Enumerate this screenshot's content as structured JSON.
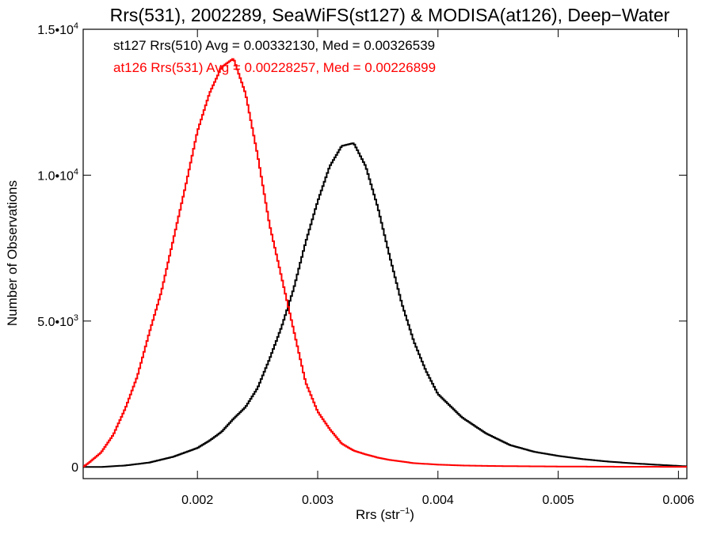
{
  "chart_data": {
    "type": "histogram",
    "title": "Rrs(531), 2002289, SeaWiFS(st127) & MODISA(at126), Deep−Water",
    "xlabel": "Rrs (str",
    "xlabel_sup": "−1",
    "xlabel_close": ")",
    "ylabel": "Number of Observations",
    "xlim": [
      0.00105,
      0.00607
    ],
    "ylim": [
      -400,
      15000
    ],
    "x_ticks": [
      {
        "value": 0.002,
        "label": "0.002"
      },
      {
        "value": 0.003,
        "label": "0.003"
      },
      {
        "value": 0.004,
        "label": "0.004"
      },
      {
        "value": 0.005,
        "label": "0.005"
      },
      {
        "value": 0.006,
        "label": "0.006"
      }
    ],
    "y_ticks": [
      {
        "value": 0,
        "base": "0",
        "exp": ""
      },
      {
        "value": 5000,
        "base": "5.0•10",
        "exp": "3"
      },
      {
        "value": 10000,
        "base": "1.0•10",
        "exp": "4"
      },
      {
        "value": 15000,
        "base": "1.5•10",
        "exp": "4"
      }
    ],
    "legend": [
      {
        "text": "st127 Rrs(510) Avg = 0.00332130, Med = 0.00326539",
        "color": "#000000"
      },
      {
        "text": "at126 Rrs(531) Avg = 0.00228257, Med = 0.00226899",
        "color": "#ff0000"
      }
    ],
    "series": [
      {
        "color": "#000000",
        "x": [
          0.00105,
          0.0012,
          0.0014,
          0.0016,
          0.0018,
          0.002,
          0.0021,
          0.0022,
          0.0023,
          0.0024,
          0.0025,
          0.0026,
          0.0027,
          0.0028,
          0.0029,
          0.003,
          0.0031,
          0.0032,
          0.0033,
          0.0034,
          0.0035,
          0.0036,
          0.0037,
          0.0038,
          0.0039,
          0.004,
          0.0042,
          0.0044,
          0.0046,
          0.0048,
          0.005,
          0.0052,
          0.0054,
          0.0056,
          0.0058,
          0.00607
        ],
        "values": [
          0,
          0,
          50,
          150,
          350,
          650,
          900,
          1200,
          1650,
          2050,
          2700,
          3700,
          4800,
          6100,
          7700,
          9100,
          10300,
          11000,
          11100,
          10300,
          8900,
          7200,
          5600,
          4300,
          3300,
          2500,
          1700,
          1150,
          750,
          520,
          380,
          270,
          190,
          130,
          80,
          20
        ]
      },
      {
        "color": "#ff0000",
        "x": [
          0.00105,
          0.0011,
          0.0012,
          0.0013,
          0.0014,
          0.0015,
          0.0016,
          0.0017,
          0.0018,
          0.0019,
          0.002,
          0.0021,
          0.0022,
          0.0023,
          0.0024,
          0.0025,
          0.0026,
          0.0027,
          0.0028,
          0.0029,
          0.003,
          0.0031,
          0.0032,
          0.0033,
          0.0034,
          0.0035,
          0.0036,
          0.0038,
          0.004,
          0.0042,
          0.0045,
          0.005,
          0.0055,
          0.00607
        ],
        "values": [
          0,
          150,
          500,
          1100,
          2000,
          3100,
          4600,
          6000,
          7800,
          9600,
          11500,
          12800,
          13700,
          14000,
          12800,
          10700,
          8300,
          6500,
          4700,
          2900,
          1900,
          1300,
          800,
          560,
          430,
          320,
          240,
          130,
          80,
          50,
          30,
          15,
          8,
          3
        ]
      }
    ]
  }
}
